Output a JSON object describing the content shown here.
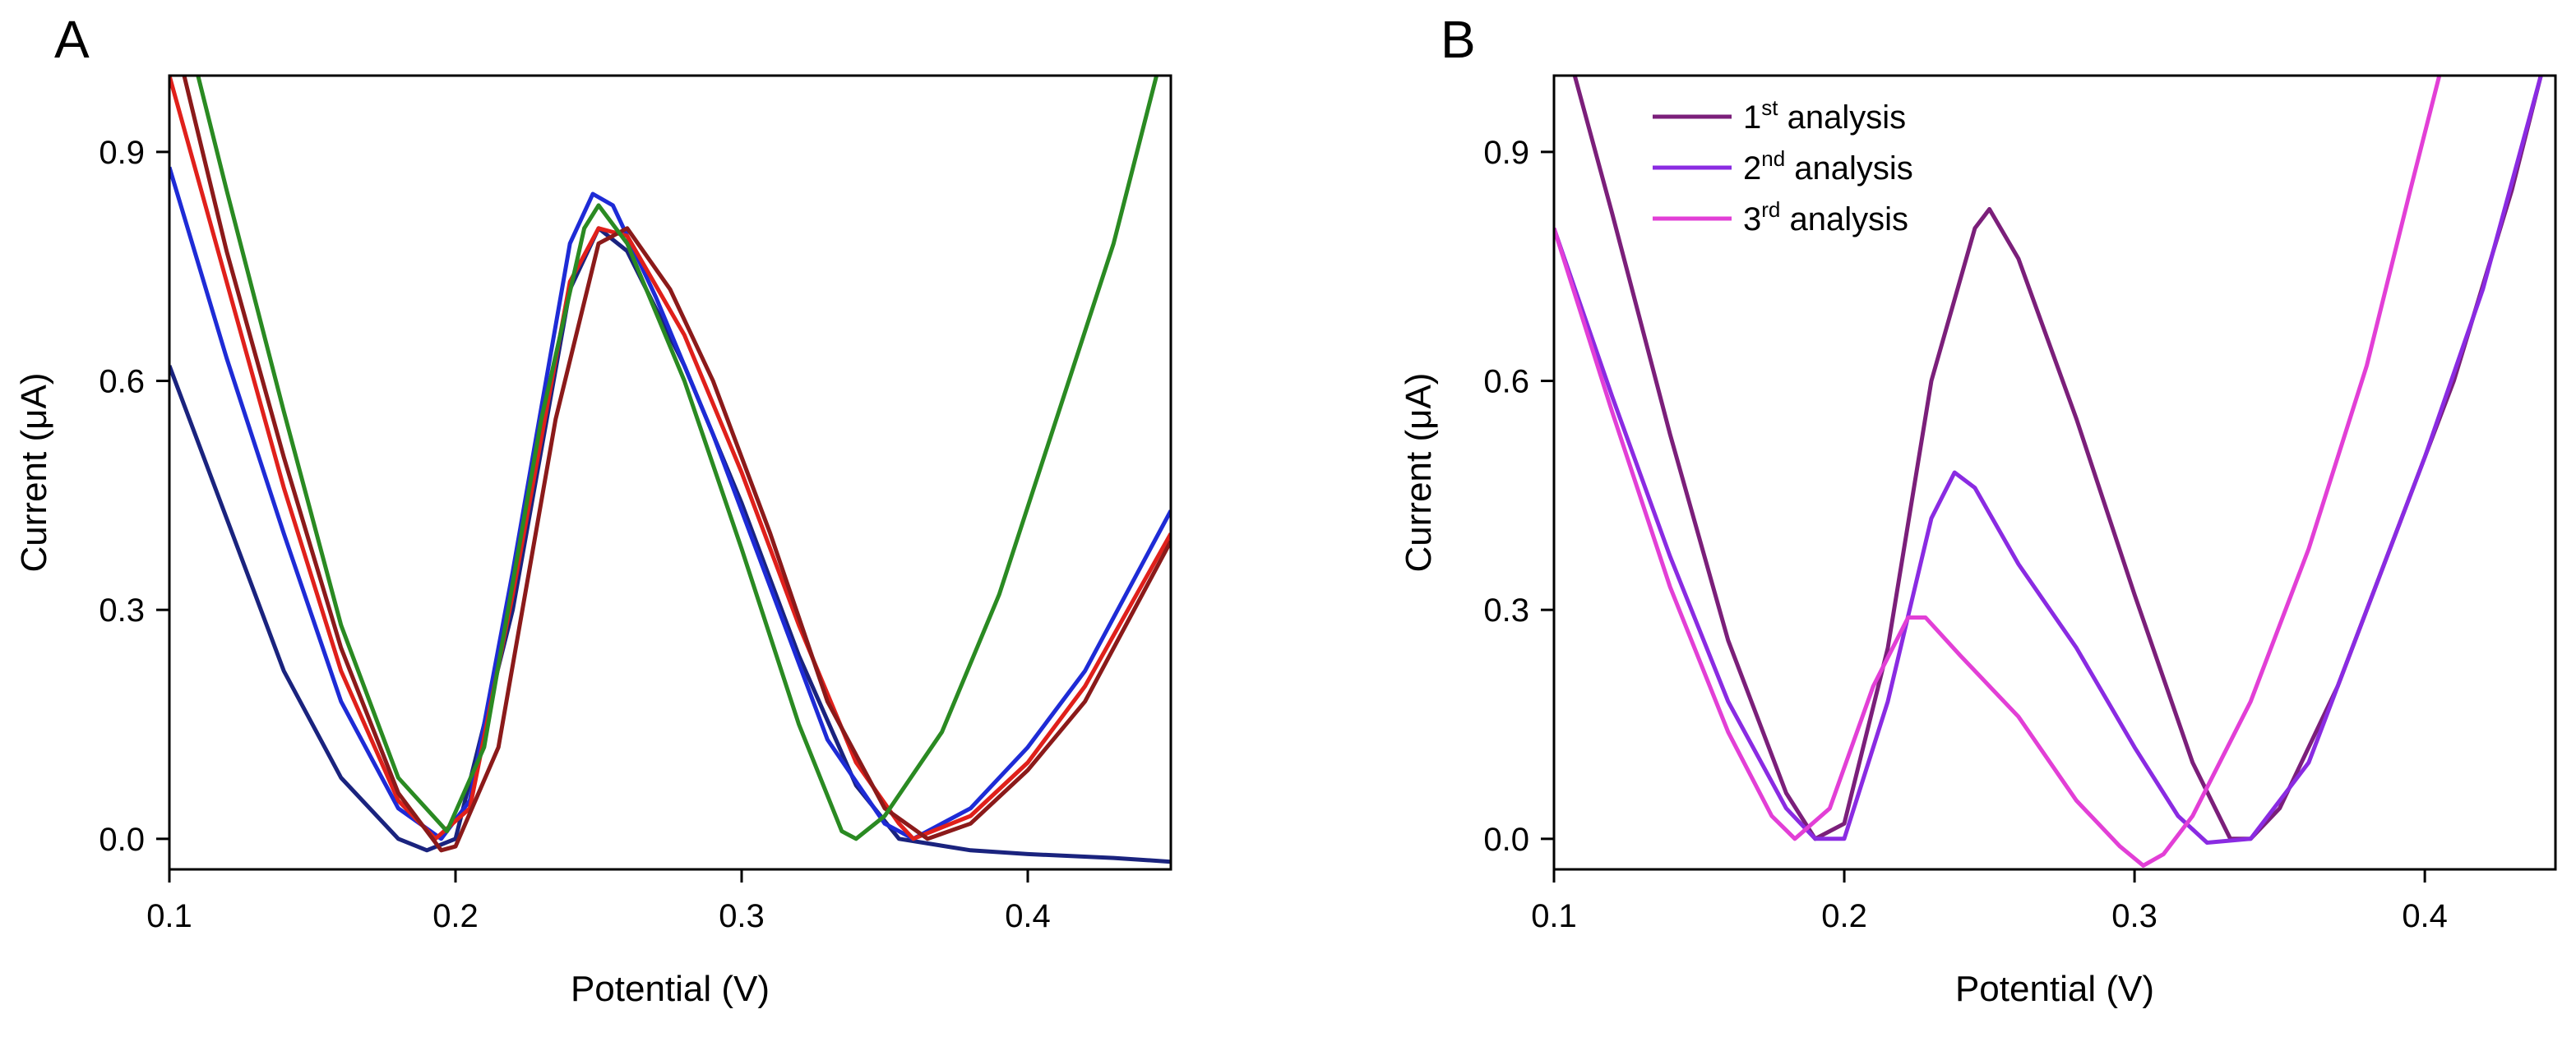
{
  "figure": {
    "panels": [
      "A",
      "B"
    ]
  },
  "chart_data": [
    {
      "panel": "A",
      "type": "line",
      "title": "",
      "xlabel": "Potential (V)",
      "ylabel": "Current (μA)",
      "xlim": [
        0.1,
        0.45
      ],
      "ylim": [
        -0.04,
        1.0
      ],
      "xticks": [
        0.1,
        0.2,
        0.3,
        0.4
      ],
      "xtick_labels": [
        "0.1",
        "0.2",
        "0.3",
        "0.4"
      ],
      "yticks": [
        0.0,
        0.3,
        0.6,
        0.9
      ],
      "ytick_labels": [
        "0.0",
        "0.3",
        "0.6",
        "0.9"
      ],
      "legend": null,
      "series": [
        {
          "name": "navy",
          "color": "#1a237e",
          "points": [
            [
              0.1,
              0.62
            ],
            [
              0.12,
              0.42
            ],
            [
              0.14,
              0.22
            ],
            [
              0.16,
              0.08
            ],
            [
              0.18,
              0.0
            ],
            [
              0.19,
              -0.015
            ],
            [
              0.2,
              0.0
            ],
            [
              0.22,
              0.3
            ],
            [
              0.24,
              0.72
            ],
            [
              0.25,
              0.8
            ],
            [
              0.26,
              0.77
            ],
            [
              0.28,
              0.62
            ],
            [
              0.3,
              0.44
            ],
            [
              0.32,
              0.24
            ],
            [
              0.34,
              0.07
            ],
            [
              0.355,
              0.0
            ],
            [
              0.38,
              -0.015
            ],
            [
              0.4,
              -0.02
            ],
            [
              0.43,
              -0.025
            ],
            [
              0.45,
              -0.03
            ]
          ]
        },
        {
          "name": "blue",
          "color": "#1e2bd6",
          "points": [
            [
              0.1,
              0.88
            ],
            [
              0.12,
              0.63
            ],
            [
              0.14,
              0.4
            ],
            [
              0.16,
              0.18
            ],
            [
              0.18,
              0.04
            ],
            [
              0.195,
              0.0
            ],
            [
              0.205,
              0.05
            ],
            [
              0.22,
              0.35
            ],
            [
              0.24,
              0.78
            ],
            [
              0.248,
              0.845
            ],
            [
              0.255,
              0.83
            ],
            [
              0.27,
              0.71
            ],
            [
              0.29,
              0.53
            ],
            [
              0.31,
              0.33
            ],
            [
              0.33,
              0.13
            ],
            [
              0.35,
              0.02
            ],
            [
              0.36,
              0.0
            ],
            [
              0.38,
              0.04
            ],
            [
              0.4,
              0.12
            ],
            [
              0.42,
              0.22
            ],
            [
              0.45,
              0.43
            ]
          ]
        },
        {
          "name": "red",
          "color": "#e0201b",
          "points": [
            [
              0.1,
              1.0
            ],
            [
              0.12,
              0.73
            ],
            [
              0.14,
              0.46
            ],
            [
              0.16,
              0.22
            ],
            [
              0.18,
              0.05
            ],
            [
              0.193,
              0.0
            ],
            [
              0.205,
              0.04
            ],
            [
              0.22,
              0.32
            ],
            [
              0.24,
              0.73
            ],
            [
              0.25,
              0.8
            ],
            [
              0.26,
              0.79
            ],
            [
              0.28,
              0.66
            ],
            [
              0.3,
              0.48
            ],
            [
              0.32,
              0.28
            ],
            [
              0.34,
              0.1
            ],
            [
              0.355,
              0.02
            ],
            [
              0.36,
              0.0
            ],
            [
              0.38,
              0.03
            ],
            [
              0.4,
              0.1
            ],
            [
              0.42,
              0.2
            ],
            [
              0.45,
              0.4
            ]
          ]
        },
        {
          "name": "dark red",
          "color": "#8b1a1a",
          "points": [
            [
              0.1,
              1.08
            ],
            [
              0.12,
              0.77
            ],
            [
              0.14,
              0.5
            ],
            [
              0.16,
              0.25
            ],
            [
              0.18,
              0.06
            ],
            [
              0.195,
              -0.015
            ],
            [
              0.2,
              -0.01
            ],
            [
              0.215,
              0.12
            ],
            [
              0.235,
              0.55
            ],
            [
              0.25,
              0.78
            ],
            [
              0.26,
              0.8
            ],
            [
              0.275,
              0.72
            ],
            [
              0.29,
              0.6
            ],
            [
              0.31,
              0.4
            ],
            [
              0.33,
              0.18
            ],
            [
              0.35,
              0.04
            ],
            [
              0.365,
              0.0
            ],
            [
              0.38,
              0.02
            ],
            [
              0.4,
              0.09
            ],
            [
              0.42,
              0.18
            ],
            [
              0.45,
              0.39
            ]
          ]
        },
        {
          "name": "green",
          "color": "#2a8a22",
          "points": [
            [
              0.1,
              1.15
            ],
            [
              0.12,
              0.85
            ],
            [
              0.14,
              0.56
            ],
            [
              0.16,
              0.28
            ],
            [
              0.18,
              0.08
            ],
            [
              0.197,
              0.01
            ],
            [
              0.21,
              0.12
            ],
            [
              0.23,
              0.55
            ],
            [
              0.245,
              0.8
            ],
            [
              0.25,
              0.83
            ],
            [
              0.26,
              0.78
            ],
            [
              0.28,
              0.6
            ],
            [
              0.3,
              0.38
            ],
            [
              0.32,
              0.15
            ],
            [
              0.335,
              0.01
            ],
            [
              0.34,
              0.0
            ],
            [
              0.35,
              0.03
            ],
            [
              0.37,
              0.14
            ],
            [
              0.39,
              0.32
            ],
            [
              0.41,
              0.55
            ],
            [
              0.43,
              0.78
            ],
            [
              0.445,
              1.0
            ]
          ]
        }
      ]
    },
    {
      "panel": "B",
      "type": "line",
      "title": "",
      "xlabel": "Potential (V)",
      "ylabel": "Current (μA)",
      "xlim": [
        0.1,
        0.445
      ],
      "ylim": [
        -0.04,
        1.0
      ],
      "xticks": [
        0.1,
        0.2,
        0.3,
        0.4
      ],
      "xtick_labels": [
        "0.1",
        "0.2",
        "0.3",
        "0.4"
      ],
      "yticks": [
        0.0,
        0.3,
        0.6,
        0.9
      ],
      "ytick_labels": [
        "0.0",
        "0.3",
        "0.6",
        "0.9"
      ],
      "legend": {
        "position": "top-left"
      },
      "series": [
        {
          "name": "1st analysis",
          "label_base": "1",
          "label_sup": "st",
          "label_rest": " analysis",
          "color": "#7b1f7a",
          "points": [
            [
              0.1,
              1.1
            ],
            [
              0.12,
              0.82
            ],
            [
              0.14,
              0.53
            ],
            [
              0.16,
              0.26
            ],
            [
              0.18,
              0.06
            ],
            [
              0.19,
              0.0
            ],
            [
              0.2,
              0.02
            ],
            [
              0.215,
              0.25
            ],
            [
              0.23,
              0.6
            ],
            [
              0.245,
              0.8
            ],
            [
              0.25,
              0.825
            ],
            [
              0.26,
              0.76
            ],
            [
              0.28,
              0.55
            ],
            [
              0.3,
              0.32
            ],
            [
              0.32,
              0.1
            ],
            [
              0.333,
              0.0
            ],
            [
              0.34,
              0.0
            ],
            [
              0.35,
              0.04
            ],
            [
              0.37,
              0.2
            ],
            [
              0.39,
              0.4
            ],
            [
              0.41,
              0.6
            ],
            [
              0.43,
              0.85
            ],
            [
              0.44,
              1.0
            ]
          ]
        },
        {
          "name": "2nd analysis",
          "label_base": "2",
          "label_sup": "nd",
          "label_rest": " analysis",
          "color": "#8a2be2",
          "points": [
            [
              0.1,
              0.8
            ],
            [
              0.12,
              0.58
            ],
            [
              0.14,
              0.37
            ],
            [
              0.16,
              0.18
            ],
            [
              0.18,
              0.04
            ],
            [
              0.19,
              0.0
            ],
            [
              0.2,
              0.0
            ],
            [
              0.215,
              0.18
            ],
            [
              0.23,
              0.42
            ],
            [
              0.238,
              0.48
            ],
            [
              0.245,
              0.46
            ],
            [
              0.26,
              0.36
            ],
            [
              0.28,
              0.25
            ],
            [
              0.3,
              0.12
            ],
            [
              0.315,
              0.03
            ],
            [
              0.325,
              -0.005
            ],
            [
              0.34,
              0.0
            ],
            [
              0.36,
              0.1
            ],
            [
              0.38,
              0.3
            ],
            [
              0.4,
              0.5
            ],
            [
              0.42,
              0.72
            ],
            [
              0.44,
              1.0
            ]
          ]
        },
        {
          "name": "3rd analysis",
          "label_base": "3",
          "label_sup": "rd",
          "label_rest": " analysis",
          "color": "#e23fd6",
          "points": [
            [
              0.1,
              0.8
            ],
            [
              0.12,
              0.56
            ],
            [
              0.14,
              0.33
            ],
            [
              0.16,
              0.14
            ],
            [
              0.175,
              0.03
            ],
            [
              0.183,
              0.0
            ],
            [
              0.195,
              0.04
            ],
            [
              0.21,
              0.2
            ],
            [
              0.222,
              0.29
            ],
            [
              0.228,
              0.29
            ],
            [
              0.24,
              0.24
            ],
            [
              0.26,
              0.16
            ],
            [
              0.28,
              0.05
            ],
            [
              0.295,
              -0.01
            ],
            [
              0.303,
              -0.035
            ],
            [
              0.31,
              -0.02
            ],
            [
              0.32,
              0.03
            ],
            [
              0.34,
              0.18
            ],
            [
              0.36,
              0.38
            ],
            [
              0.38,
              0.62
            ],
            [
              0.395,
              0.85
            ],
            [
              0.405,
              1.0
            ]
          ]
        }
      ]
    }
  ]
}
